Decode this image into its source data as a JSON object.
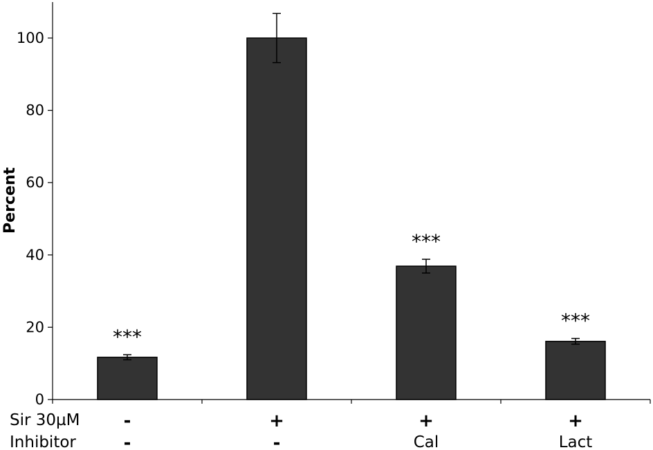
{
  "chart_data": {
    "type": "bar",
    "ylabel": "Percent",
    "xlabel": "",
    "ylim": [
      0,
      110
    ],
    "yticks": [
      0,
      20,
      40,
      60,
      80,
      100
    ],
    "grid": false,
    "bar_color": "#333333",
    "categories": [
      {
        "sir": "-",
        "inhibitor": "-",
        "value": 11.7,
        "error": 0.7,
        "annotation": "***"
      },
      {
        "sir": "+",
        "inhibitor": "-",
        "value": 100,
        "error": 6.8,
        "annotation": ""
      },
      {
        "sir": "+",
        "inhibitor": "Cal",
        "value": 36.9,
        "error": 1.9,
        "annotation": "***"
      },
      {
        "sir": "+",
        "inhibitor": "Lact",
        "value": 16.1,
        "error": 0.8,
        "annotation": "***"
      }
    ],
    "row_labels": {
      "sir": "Sir 30µM",
      "inhibitor": "Inhibitor"
    }
  }
}
